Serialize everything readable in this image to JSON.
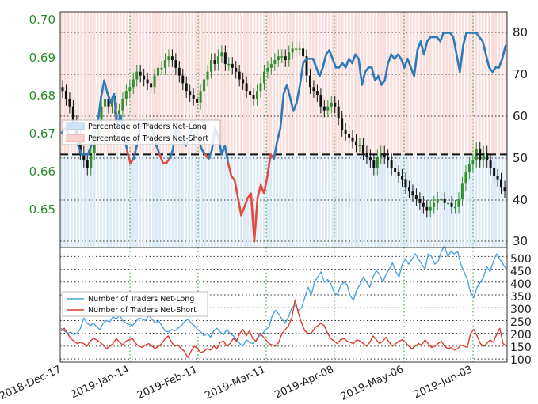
{
  "colors": {
    "price_axis": "#2a8a2a",
    "long": "#2d7ab8",
    "short": "#e04b3c",
    "long_light": "#4aa3df",
    "short_light": "#e03a30",
    "candle_up": "#2f8f2f",
    "candle_down": "#111111",
    "long_band": "#cfe3f3",
    "short_band": "#f7d2cf",
    "grid_green": "#2fa02f",
    "grid_dark": "#333333"
  },
  "chart_data": [
    {
      "type": "candlestick_line",
      "y_left_ticks": [
        "0.70",
        "0.69",
        "0.68",
        "0.67",
        "0.66",
        "0.65"
      ],
      "y_left_range": [
        0.6395,
        0.7005
      ],
      "y_right_ticks": [
        "80",
        "70",
        "60",
        "50",
        "40",
        "30"
      ],
      "y_right_range": [
        28.6,
        82.8
      ],
      "reference_line": 50,
      "legend": {
        "entries": [
          "Percentage of Traders Net-Long",
          "Percentage of Traders Net-Short"
        ],
        "placement": "left"
      },
      "net_long_pct": [
        55,
        56,
        55,
        54,
        55,
        52,
        50,
        50,
        50,
        52,
        55,
        57,
        63,
        67,
        64,
        62,
        64,
        57,
        59,
        55,
        51,
        48,
        49,
        52,
        56,
        57,
        57,
        57,
        55,
        52,
        50,
        48,
        48,
        49,
        51,
        56,
        55,
        53,
        52,
        54,
        56,
        57,
        53,
        51,
        50,
        49,
        51,
        56,
        54,
        50,
        52,
        48,
        45,
        44,
        40,
        36,
        38,
        40,
        41,
        30,
        40,
        43,
        41,
        45,
        50,
        49,
        53,
        56,
        64,
        66,
        63,
        60,
        62,
        66,
        71,
        72,
        72,
        72,
        70,
        68,
        70,
        73,
        74,
        72,
        70,
        70,
        71,
        70,
        72,
        71,
        73,
        72,
        66,
        69,
        70,
        70,
        67,
        68,
        66,
        67,
        71,
        73,
        72,
        73,
        72,
        70,
        72,
        70,
        68,
        74,
        76,
        73,
        76,
        77,
        77,
        77,
        76,
        78,
        78,
        78,
        77,
        73,
        69,
        75,
        78,
        78,
        78,
        78,
        77,
        76,
        73,
        70,
        69,
        70,
        70,
        72,
        75
      ],
      "price_open": [
        0.681,
        0.68,
        0.678,
        0.676,
        0.672,
        0.669,
        0.664,
        0.662,
        0.66,
        0.664,
        0.668,
        0.672,
        0.676,
        0.678,
        0.676,
        0.677,
        0.674,
        0.675,
        0.678,
        0.68,
        0.681,
        0.683,
        0.685,
        0.684,
        0.683,
        0.682,
        0.681,
        0.684,
        0.686,
        0.686,
        0.688,
        0.689,
        0.688,
        0.686,
        0.684,
        0.682,
        0.68,
        0.679,
        0.678,
        0.677,
        0.68,
        0.683,
        0.685,
        0.688,
        0.687,
        0.689,
        0.69,
        0.687,
        0.687,
        0.686,
        0.685,
        0.683,
        0.682,
        0.68,
        0.679,
        0.678,
        0.68,
        0.682,
        0.685,
        0.686,
        0.687,
        0.688,
        0.689,
        0.689,
        0.688,
        0.69,
        0.691,
        0.691,
        0.691,
        0.689,
        0.684,
        0.681,
        0.68,
        0.679,
        0.676,
        0.675,
        0.676,
        0.677,
        0.676,
        0.673,
        0.67,
        0.669,
        0.668,
        0.667,
        0.666,
        0.666,
        0.664,
        0.663,
        0.662,
        0.66,
        0.663,
        0.664,
        0.663,
        0.662,
        0.66,
        0.659,
        0.658,
        0.657,
        0.655,
        0.654,
        0.653,
        0.652,
        0.651,
        0.65,
        0.649,
        0.65,
        0.651,
        0.652,
        0.652,
        0.651,
        0.651,
        0.65,
        0.65,
        0.652,
        0.656,
        0.659,
        0.661,
        0.662,
        0.665,
        0.662,
        0.664,
        0.662,
        0.66,
        0.658,
        0.657,
        0.655
      ],
      "price_close": [
        0.68,
        0.678,
        0.676,
        0.672,
        0.669,
        0.664,
        0.662,
        0.66,
        0.664,
        0.668,
        0.672,
        0.676,
        0.678,
        0.676,
        0.677,
        0.674,
        0.675,
        0.678,
        0.68,
        0.681,
        0.683,
        0.685,
        0.684,
        0.683,
        0.682,
        0.681,
        0.684,
        0.686,
        0.686,
        0.688,
        0.689,
        0.688,
        0.686,
        0.684,
        0.682,
        0.68,
        0.679,
        0.678,
        0.677,
        0.68,
        0.683,
        0.685,
        0.688,
        0.687,
        0.689,
        0.69,
        0.687,
        0.687,
        0.686,
        0.685,
        0.683,
        0.682,
        0.68,
        0.679,
        0.678,
        0.68,
        0.682,
        0.685,
        0.686,
        0.687,
        0.688,
        0.689,
        0.689,
        0.688,
        0.69,
        0.691,
        0.691,
        0.691,
        0.689,
        0.684,
        0.681,
        0.68,
        0.679,
        0.676,
        0.675,
        0.676,
        0.677,
        0.676,
        0.673,
        0.67,
        0.669,
        0.668,
        0.667,
        0.666,
        0.666,
        0.664,
        0.663,
        0.662,
        0.66,
        0.663,
        0.664,
        0.663,
        0.662,
        0.66,
        0.659,
        0.658,
        0.657,
        0.655,
        0.654,
        0.653,
        0.652,
        0.651,
        0.65,
        0.649,
        0.65,
        0.651,
        0.652,
        0.652,
        0.651,
        0.651,
        0.65,
        0.65,
        0.652,
        0.656,
        0.659,
        0.661,
        0.662,
        0.665,
        0.662,
        0.664,
        0.662,
        0.66,
        0.658,
        0.657,
        0.655,
        0.654
      ]
    },
    {
      "type": "line",
      "y_ticks": [
        "500",
        "450",
        "400",
        "350",
        "300",
        "250",
        "200",
        "150",
        "100"
      ],
      "y_range": [
        88,
        535
      ],
      "x_tick_labels": [
        "2018-Dec-17",
        "2019-Jan-14",
        "2019-Feb-11",
        "2019-Mar-11",
        "2019-Apr-08",
        "2019-May-06",
        "2019-Jun-03"
      ],
      "legend": {
        "entries": [
          "Number of Traders Net-Long",
          "Number of Traders Net-Short"
        ],
        "placement": "left"
      },
      "series": [
        {
          "name": "Number of Traders Net-Long",
          "values": [
            220,
            210,
            200,
            205,
            195,
            200,
            220,
            260,
            240,
            230,
            240,
            225,
            215,
            240,
            250,
            245,
            265,
            255,
            270,
            250,
            240,
            235,
            230,
            245,
            260,
            255,
            250,
            270,
            255,
            240,
            250,
            230,
            210,
            205,
            215,
            210,
            220,
            230,
            245,
            255,
            240,
            230,
            215,
            205,
            190,
            200,
            185,
            210,
            220,
            205,
            195,
            215,
            200,
            190,
            175,
            160,
            150,
            175,
            165,
            160,
            170,
            190,
            200,
            215,
            225,
            270,
            290,
            275,
            255,
            240,
            265,
            300,
            310,
            290,
            300,
            340,
            380,
            350,
            400,
            420,
            440,
            400,
            410,
            395,
            360,
            350,
            385,
            400,
            390,
            345,
            330,
            370,
            390,
            420,
            400,
            380,
            420,
            445,
            430,
            400,
            430,
            450,
            475,
            440,
            420,
            470,
            490,
            470,
            490,
            510,
            490,
            470,
            450,
            510,
            500,
            470,
            480,
            520,
            540,
            500,
            520,
            510,
            520,
            470,
            440,
            410,
            360,
            340,
            380,
            400,
            420,
            460,
            440,
            480,
            510,
            490,
            470,
            450
          ]
        },
        {
          "name": "Number of Traders Net-Short",
          "values": [
            210,
            220,
            200,
            180,
            170,
            160,
            165,
            160,
            150,
            170,
            180,
            175,
            165,
            155,
            140,
            150,
            160,
            180,
            165,
            155,
            170,
            175,
            180,
            160,
            150,
            145,
            155,
            160,
            150,
            140,
            150,
            160,
            180,
            190,
            165,
            150,
            155,
            140,
            130,
            105,
            130,
            150,
            140,
            125,
            130,
            140,
            135,
            150,
            140,
            165,
            170,
            150,
            160,
            180,
            170,
            200,
            215,
            190,
            210,
            180,
            170,
            200,
            190,
            175,
            160,
            155,
            150,
            165,
            200,
            215,
            230,
            260,
            330,
            280,
            240,
            210,
            200,
            200,
            220,
            230,
            240,
            230,
            200,
            180,
            170,
            160,
            175,
            180,
            170,
            165,
            160,
            175,
            170,
            160,
            150,
            165,
            190,
            175,
            160,
            170,
            185,
            165,
            150,
            160,
            170,
            175,
            165,
            150,
            140,
            150,
            160,
            155,
            175,
            160,
            145,
            150,
            160,
            170,
            150,
            140,
            145,
            135,
            140,
            155,
            150,
            145,
            200,
            215,
            190,
            160,
            150,
            160,
            175,
            165,
            195,
            220,
            160,
            150
          ]
        }
      ]
    }
  ]
}
